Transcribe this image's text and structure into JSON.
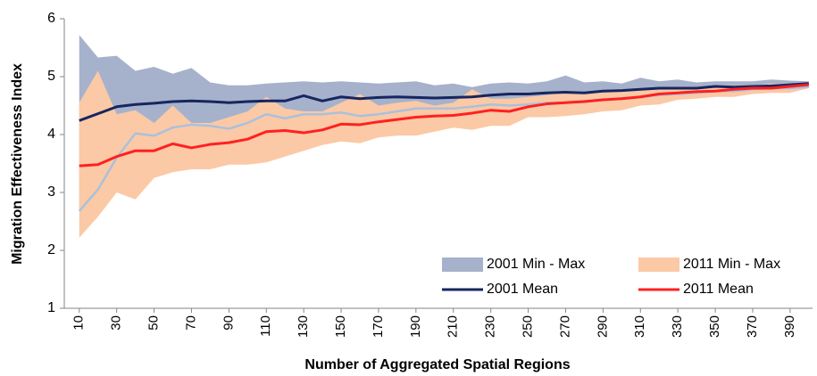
{
  "chart_data": {
    "type": "line",
    "x_label": "Number of Aggregated Spatial Regions",
    "y_label": "Migration Effectiveness Index",
    "x": [
      10,
      20,
      30,
      40,
      50,
      60,
      70,
      80,
      90,
      100,
      110,
      120,
      130,
      140,
      150,
      160,
      170,
      180,
      190,
      200,
      210,
      220,
      230,
      240,
      250,
      260,
      270,
      280,
      290,
      300,
      310,
      320,
      330,
      340,
      350,
      360,
      370,
      380,
      390,
      400
    ],
    "xlim": [
      2,
      402
    ],
    "xticks": [
      10,
      30,
      50,
      70,
      90,
      110,
      130,
      150,
      170,
      190,
      210,
      230,
      250,
      270,
      290,
      310,
      330,
      350,
      370,
      390
    ],
    "ylim": [
      1,
      6
    ],
    "yticks": [
      1,
      2,
      3,
      4,
      5,
      6
    ],
    "legend": "lower right",
    "series": [
      {
        "name": "2001 Min - Max",
        "kind": "band",
        "color": "#a6b2cb",
        "edge_color": "#aac0dd",
        "min": [
          2.68,
          3.05,
          3.6,
          4.02,
          3.98,
          4.12,
          4.17,
          4.15,
          4.1,
          4.2,
          4.35,
          4.28,
          4.35,
          4.35,
          4.38,
          4.32,
          4.35,
          4.4,
          4.45,
          4.45,
          4.45,
          4.48,
          4.52,
          4.5,
          4.52,
          4.55,
          4.55,
          4.58,
          4.6,
          4.62,
          4.65,
          4.68,
          4.7,
          4.72,
          4.75,
          4.75,
          4.78,
          4.8,
          4.8,
          4.82
        ],
        "max": [
          5.72,
          5.33,
          5.36,
          5.1,
          5.17,
          5.05,
          5.15,
          4.9,
          4.85,
          4.85,
          4.88,
          4.9,
          4.92,
          4.9,
          4.92,
          4.9,
          4.88,
          4.9,
          4.92,
          4.85,
          4.88,
          4.82,
          4.88,
          4.9,
          4.88,
          4.92,
          5.02,
          4.9,
          4.92,
          4.88,
          4.98,
          4.92,
          4.95,
          4.9,
          4.92,
          4.92,
          4.92,
          4.95,
          4.93,
          4.92
        ]
      },
      {
        "name": "2011 Min - Max",
        "kind": "band",
        "color": "#fbc9a5",
        "min": [
          2.22,
          2.58,
          3.0,
          2.88,
          3.25,
          3.35,
          3.4,
          3.4,
          3.48,
          3.48,
          3.52,
          3.62,
          3.72,
          3.82,
          3.88,
          3.85,
          3.95,
          3.98,
          3.98,
          4.05,
          4.12,
          4.08,
          4.15,
          4.15,
          4.3,
          4.3,
          4.32,
          4.35,
          4.4,
          4.42,
          4.5,
          4.52,
          4.6,
          4.62,
          4.65,
          4.65,
          4.7,
          4.72,
          4.72,
          4.8
        ],
        "max": [
          4.55,
          5.1,
          4.35,
          4.42,
          4.2,
          4.5,
          4.2,
          4.2,
          4.3,
          4.4,
          4.65,
          4.45,
          4.4,
          4.4,
          4.55,
          4.7,
          4.5,
          4.55,
          4.58,
          4.5,
          4.55,
          4.78,
          4.62,
          4.62,
          4.65,
          4.68,
          4.75,
          4.72,
          4.75,
          4.75,
          4.78,
          4.8,
          4.8,
          4.82,
          4.85,
          4.85,
          4.85,
          4.88,
          4.88,
          4.9
        ]
      },
      {
        "name": "2001 Mean",
        "kind": "line",
        "color": "#172560",
        "values": [
          4.24,
          4.36,
          4.48,
          4.52,
          4.54,
          4.57,
          4.58,
          4.57,
          4.55,
          4.57,
          4.58,
          4.58,
          4.67,
          4.58,
          4.65,
          4.62,
          4.64,
          4.65,
          4.64,
          4.63,
          4.64,
          4.65,
          4.68,
          4.7,
          4.7,
          4.72,
          4.73,
          4.72,
          4.75,
          4.76,
          4.78,
          4.8,
          4.8,
          4.8,
          4.83,
          4.82,
          4.83,
          4.84,
          4.86,
          4.88
        ]
      },
      {
        "name": "2011 Mean",
        "kind": "line",
        "color": "#ff2020",
        "values": [
          3.46,
          3.48,
          3.62,
          3.72,
          3.72,
          3.84,
          3.77,
          3.83,
          3.86,
          3.92,
          4.05,
          4.07,
          4.03,
          4.08,
          4.18,
          4.17,
          4.22,
          4.26,
          4.3,
          4.32,
          4.33,
          4.37,
          4.42,
          4.4,
          4.48,
          4.53,
          4.55,
          4.57,
          4.6,
          4.62,
          4.65,
          4.7,
          4.72,
          4.74,
          4.75,
          4.78,
          4.8,
          4.8,
          4.83,
          4.86
        ]
      }
    ]
  }
}
